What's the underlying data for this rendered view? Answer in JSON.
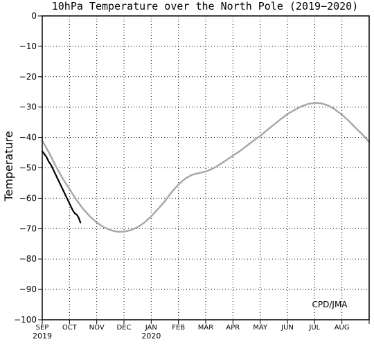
{
  "chart_data": {
    "type": "line",
    "title": "10hPa Temperature over the North Pole (2019−2020)",
    "ylabel": "Temperature",
    "xlabel": "",
    "ylim": [
      -100,
      0
    ],
    "yticks": [
      0,
      -10,
      -20,
      -30,
      -40,
      -50,
      -60,
      -70,
      -80,
      -90,
      -100
    ],
    "xlim_months": [
      0,
      12
    ],
    "xticks": [
      "SEP",
      "OCT",
      "NOV",
      "DEC",
      "JAN",
      "FEB",
      "MAR",
      "APR",
      "MAY",
      "JUN",
      "JUL",
      "AUG"
    ],
    "year_labels": [
      {
        "label": "2019",
        "month_index": 0
      },
      {
        "label": "2020",
        "month_index": 4
      }
    ],
    "grid": true,
    "annotation": "CPD/JMA",
    "series": [
      {
        "color": "#a8a8a8",
        "x_months": [
          0,
          0.25,
          0.5,
          0.75,
          1.0,
          1.25,
          1.5,
          1.75,
          2.0,
          2.25,
          2.5,
          2.75,
          3.0,
          3.25,
          3.5,
          3.75,
          4.0,
          4.25,
          4.5,
          4.75,
          5.0,
          5.25,
          5.5,
          5.75,
          6.0,
          6.25,
          6.5,
          6.75,
          7.0,
          7.25,
          7.5,
          7.75,
          8.0,
          8.25,
          8.5,
          8.75,
          9.0,
          9.25,
          9.5,
          9.75,
          10.0,
          10.25,
          10.5,
          10.75,
          11.0,
          11.25,
          11.5,
          11.75,
          12.0
        ],
        "y": [
          -41,
          -45,
          -49.5,
          -53.5,
          -57,
          -60.5,
          -63.5,
          -66,
          -68,
          -69.5,
          -70.5,
          -71,
          -71,
          -70.5,
          -69.5,
          -68,
          -66,
          -63.5,
          -61,
          -58,
          -55.5,
          -53.5,
          -52.3,
          -51.7,
          -51.2,
          -50.3,
          -49,
          -47.5,
          -46,
          -44.5,
          -42.8,
          -41.1,
          -39.5,
          -37.6,
          -35.8,
          -34,
          -32.3,
          -31,
          -29.8,
          -29,
          -28.6,
          -28.8,
          -29.5,
          -30.8,
          -32.5,
          -34.5,
          -36.8,
          -39,
          -41.5
        ]
      },
      {
        "color": "#000000",
        "x_months": [
          0,
          0.08,
          0.16,
          0.24,
          0.32,
          0.4,
          0.48,
          0.56,
          0.64,
          0.72,
          0.8,
          0.88,
          0.96,
          1.04,
          1.12,
          1.2,
          1.28,
          1.34,
          1.4
        ],
        "y": [
          -44.5,
          -45.5,
          -46.5,
          -48,
          -49,
          -50.5,
          -52,
          -53.5,
          -55,
          -56.5,
          -58,
          -59.5,
          -61,
          -62.5,
          -64,
          -65,
          -65.5,
          -66.5,
          -68
        ]
      }
    ]
  }
}
